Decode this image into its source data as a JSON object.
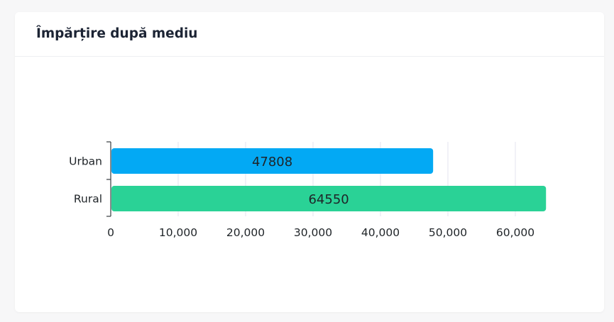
{
  "card": {
    "title": "Împărțire după mediu"
  },
  "colors": {
    "urban": "#03a9f4",
    "rural": "#2ad296",
    "grid": "#e3e3ef",
    "axis": "#373d3f",
    "text": "#1f2428"
  },
  "chart_data": {
    "type": "bar",
    "orientation": "horizontal",
    "title": "",
    "xlabel": "",
    "ylabel": "",
    "categories": [
      "Urban",
      "Rural"
    ],
    "values": [
      47808,
      64550
    ],
    "xlim": [
      0,
      65000
    ],
    "x_ticks": [
      0,
      10000,
      20000,
      30000,
      40000,
      50000,
      60000
    ],
    "x_tick_labels": [
      "0",
      "10,000",
      "20,000",
      "30,000",
      "40,000",
      "50,000",
      "60,000"
    ],
    "grid": "vertical",
    "legend": "none"
  }
}
